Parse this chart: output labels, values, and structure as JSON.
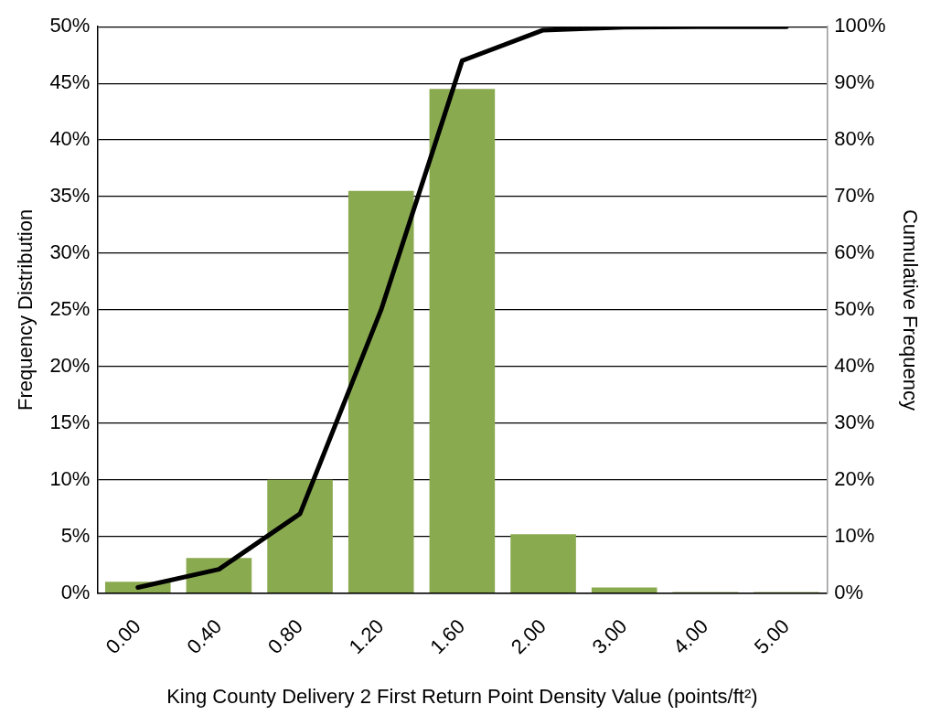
{
  "chart_data": {
    "type": "bar",
    "xlabel": "King County Delivery 2 First Return Point Density Value (points/ft²)",
    "ylabel": "Frequency Distribution",
    "y2label": "Cumulative Frequency",
    "categories": [
      "0.00",
      "0.40",
      "0.80",
      "1.20",
      "1.60",
      "2.00",
      "3.00",
      "4.00",
      "5.00"
    ],
    "series": [
      {
        "color": "#8aaa50",
        "values": [
          1,
          3.1,
          10,
          35.5,
          44.5,
          5.2,
          0.5,
          0.1,
          0.1
        ]
      },
      {
        "type": "line",
        "axis": "y2",
        "color": "#000000",
        "values": [
          1,
          4.2,
          14,
          50,
          94,
          99.4,
          99.9,
          100,
          100
        ]
      }
    ],
    "ylim": [
      0,
      50
    ],
    "yticks": [
      {
        "value": 0,
        "label": "0%"
      },
      {
        "value": 5,
        "label": "5%"
      },
      {
        "value": 10,
        "label": "10%"
      },
      {
        "value": 15,
        "label": "15%"
      },
      {
        "value": 20,
        "label": "20%"
      },
      {
        "value": 25,
        "label": "25%"
      },
      {
        "value": 30,
        "label": "30%"
      },
      {
        "value": 35,
        "label": "35%"
      },
      {
        "value": 40,
        "label": "40%"
      },
      {
        "value": 45,
        "label": "45%"
      },
      {
        "value": 50,
        "label": "50%"
      }
    ],
    "y2lim": [
      0,
      100
    ],
    "y2ticks": [
      {
        "value": 0,
        "label": "0%"
      },
      {
        "value": 10,
        "label": "10%"
      },
      {
        "value": 20,
        "label": "20%"
      },
      {
        "value": 30,
        "label": "30%"
      },
      {
        "value": 40,
        "label": "40%"
      },
      {
        "value": 50,
        "label": "50%"
      },
      {
        "value": 60,
        "label": "60%"
      },
      {
        "value": 70,
        "label": "70%"
      },
      {
        "value": 80,
        "label": "80%"
      },
      {
        "value": 90,
        "label": "90%"
      },
      {
        "value": 100,
        "label": "100%"
      }
    ],
    "grid": "y",
    "legend": false,
    "marker": "none",
    "line_style": "solid"
  }
}
